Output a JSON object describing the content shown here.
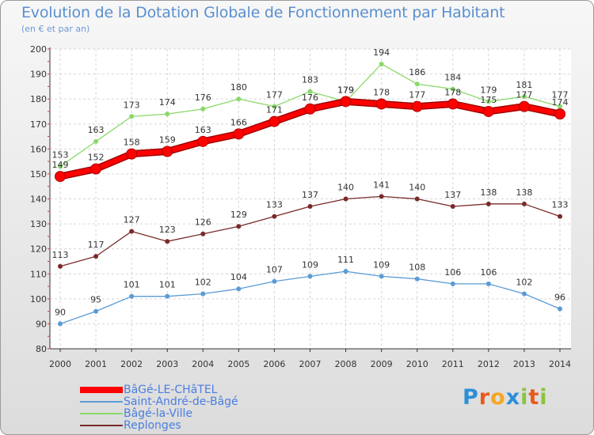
{
  "chart_data": {
    "type": "line",
    "title": "Evolution de la Dotation Globale de Fonctionnement par Habitant",
    "subtitle": "(en € et par an)",
    "x": [
      "2000",
      "2001",
      "2002",
      "2003",
      "2004",
      "2005",
      "2006",
      "2007",
      "2008",
      "2009",
      "2010",
      "2011",
      "2012",
      "2013",
      "2014"
    ],
    "ylim": [
      80,
      200
    ],
    "yticks": [
      80,
      90,
      100,
      110,
      120,
      130,
      140,
      150,
      160,
      170,
      180,
      190,
      200
    ],
    "grid": true,
    "series": [
      {
        "name": "BâGé-LE-CHâTEL",
        "color": "#ff0000",
        "values": [
          149,
          152,
          158,
          159,
          163,
          166,
          171,
          176,
          179,
          178,
          177,
          178,
          175,
          177,
          174
        ]
      },
      {
        "name": "Saint-André-de-Bâgé",
        "color": "#5b9bd5",
        "values": [
          90,
          95,
          101,
          101,
          102,
          104,
          107,
          109,
          111,
          109,
          108,
          106,
          106,
          102,
          96
        ]
      },
      {
        "name": "Bâgé-la-Ville",
        "color": "#8ad96a",
        "values": [
          153,
          163,
          173,
          174,
          176,
          180,
          177,
          183,
          179,
          194,
          186,
          184,
          179,
          181,
          177
        ]
      },
      {
        "name": "Replonges",
        "color": "#7a2a2a",
        "values": [
          113,
          117,
          127,
          123,
          126,
          129,
          133,
          137,
          140,
          141,
          140,
          137,
          138,
          138,
          133
        ]
      }
    ]
  },
  "logo": {
    "letters": [
      "P",
      "r",
      "o",
      "x",
      "i",
      "t",
      "i"
    ],
    "colors": [
      "#2c8fd8",
      "#e85a1a",
      "#f5a623",
      "#2c8fd8",
      "#8ac43f",
      "#e85a1a",
      "#8ac43f"
    ]
  }
}
